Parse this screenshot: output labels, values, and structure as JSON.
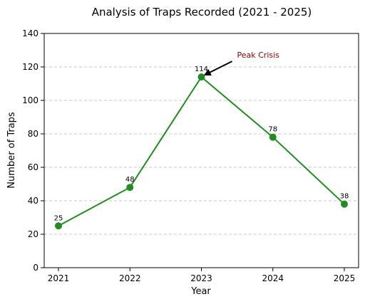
{
  "chart_data": {
    "type": "line",
    "title": "Analysis of Traps Recorded (2021 - 2025)",
    "xlabel": "Year",
    "ylabel": "Number of Traps",
    "categories": [
      "2021",
      "2022",
      "2023",
      "2024",
      "2025"
    ],
    "series": [
      {
        "values": [
          25,
          48,
          114,
          78,
          38
        ]
      }
    ],
    "data_labels": [
      "25",
      "48",
      "114",
      "78",
      "38"
    ],
    "ylim": [
      0,
      140
    ],
    "yticks": [
      0,
      20,
      40,
      60,
      80,
      100,
      120,
      140
    ],
    "ytick_labels": [
      "0",
      "20",
      "40",
      "60",
      "80",
      "100",
      "120",
      "140"
    ],
    "grid": "horizontal dashed",
    "line_color": "#228b22",
    "annotation": {
      "text": "Peak Crisis",
      "color": "#8b0000",
      "points_to_category": "2023",
      "points_to_value": 114
    }
  }
}
